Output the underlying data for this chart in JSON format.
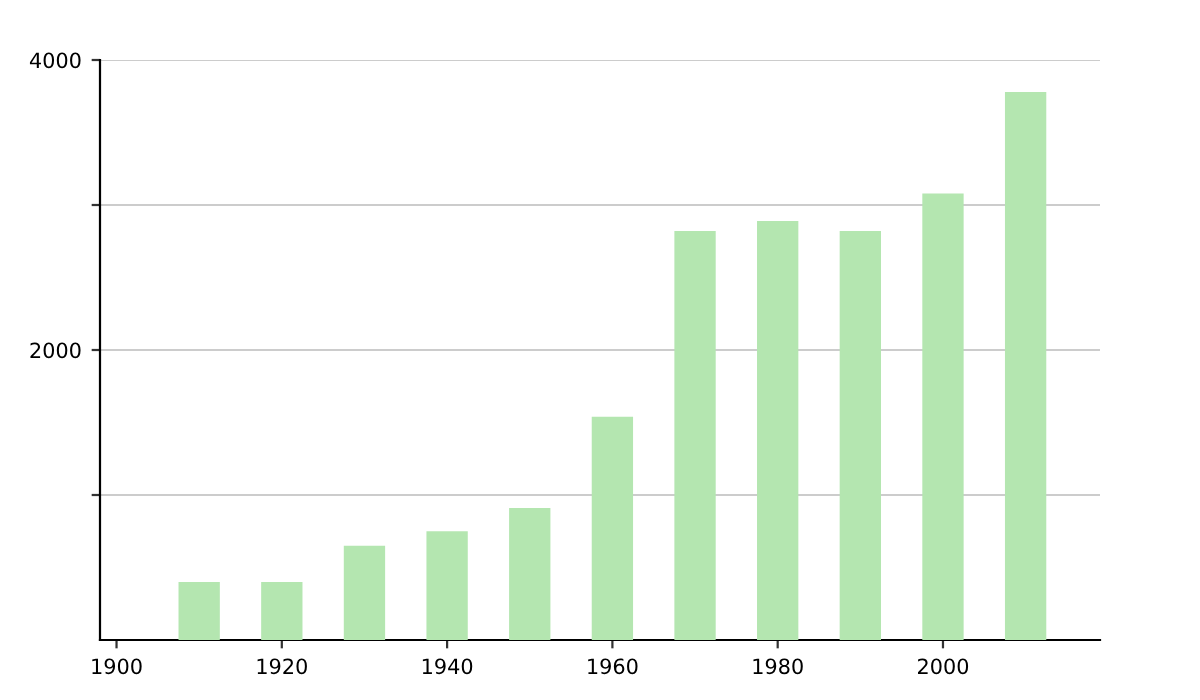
{
  "chart_data": {
    "type": "bar",
    "x": [
      1910,
      1920,
      1930,
      1940,
      1950,
      1960,
      1970,
      1980,
      1990,
      2000,
      2010
    ],
    "values": [
      400,
      400,
      650,
      750,
      910,
      1540,
      2820,
      2890,
      2820,
      3080,
      3780
    ],
    "color": "#b4e6b0",
    "xlim": [
      1898,
      2019
    ],
    "xticks": [
      1900,
      1920,
      1940,
      1960,
      1980,
      2000
    ],
    "ylim": [
      0,
      4000
    ],
    "yticks": [
      {
        "value": 1000,
        "label": null
      },
      2000,
      {
        "value": 3000,
        "label": null
      },
      4000
    ],
    "grid": "y"
  }
}
